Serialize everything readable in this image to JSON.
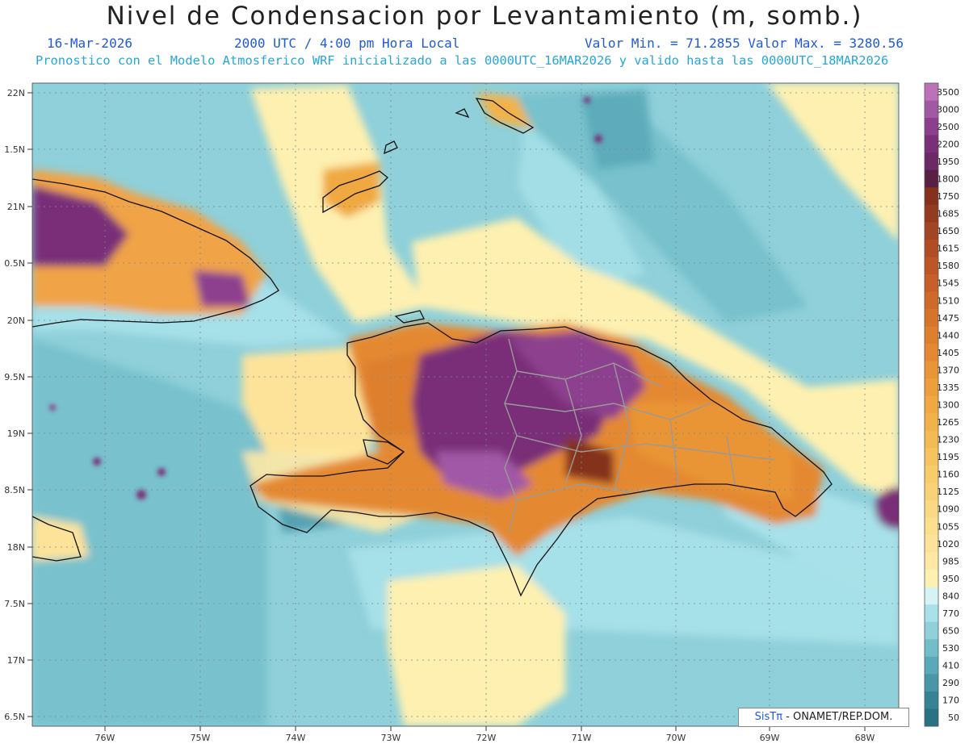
{
  "header": {
    "title": "Nivel de Condensacion por Levantamiento (m, somb.)",
    "date": "16-Mar-2026",
    "time": "2000 UTC / 4:00 pm Hora Local",
    "minmax": "Valor Min. = 71.2855   Valor Max. = 3280.56",
    "model_line": "Pronostico con el Modelo Atmosferico WRF inicializado a las 0000UTC_16MAR2026 y valido hasta las  0000UTC_18MAR2026"
  },
  "map": {
    "lat_labels": [
      "22N",
      "1.5N",
      "21N",
      "0.5N",
      "20N",
      "9.5N",
      "19N",
      "8.5N",
      "18N",
      "7.5N",
      "17N",
      "6.5N"
    ],
    "lon_labels": [
      "76W",
      "75W",
      "74W",
      "73W",
      "72W",
      "71W",
      "70W",
      "69W",
      "68W"
    ],
    "colors": {
      "ocean": "#8fd0da",
      "land": "#f0a347",
      "high_land": "#7d3a7a",
      "coast": "#111111",
      "grid": "#7a8a90"
    }
  },
  "colorbar": {
    "levels": [
      "3500",
      "3000",
      "2500",
      "2200",
      "1950",
      "1800",
      "1750",
      "1685",
      "1650",
      "1615",
      "1580",
      "1545",
      "1510",
      "1475",
      "1440",
      "1405",
      "1370",
      "1335",
      "1300",
      "1265",
      "1230",
      "1195",
      "1160",
      "1125",
      "1090",
      "1055",
      "1020",
      "985",
      "950",
      "840",
      "770",
      "650",
      "530",
      "410",
      "290",
      "170",
      "50"
    ],
    "colors": [
      "#bd71b9",
      "#a159a6",
      "#8c3f8e",
      "#7a2f78",
      "#6b2a66",
      "#5a1f45",
      "#84321e",
      "#943b1f",
      "#a34422",
      "#b24c24",
      "#bd5526",
      "#c65f28",
      "#cf6a2a",
      "#d7742c",
      "#de7f2e",
      "#e48931",
      "#e99535",
      "#ed9f3a",
      "#f0a941",
      "#f2b24a",
      "#f4bb54",
      "#f6c35f",
      "#f8cb6b",
      "#f9d277",
      "#fbd883",
      "#fcde8f",
      "#fde39a",
      "#fee8a5",
      "#fef0b0",
      "#d6f3f4",
      "#a8e1e9",
      "#8fd0da",
      "#72bdc9",
      "#5aa9b8",
      "#4896a6",
      "#368394",
      "#2a7283"
    ]
  },
  "credit": {
    "brand": "SisTπ",
    "text": " - ONAMET/REP.DOM."
  }
}
